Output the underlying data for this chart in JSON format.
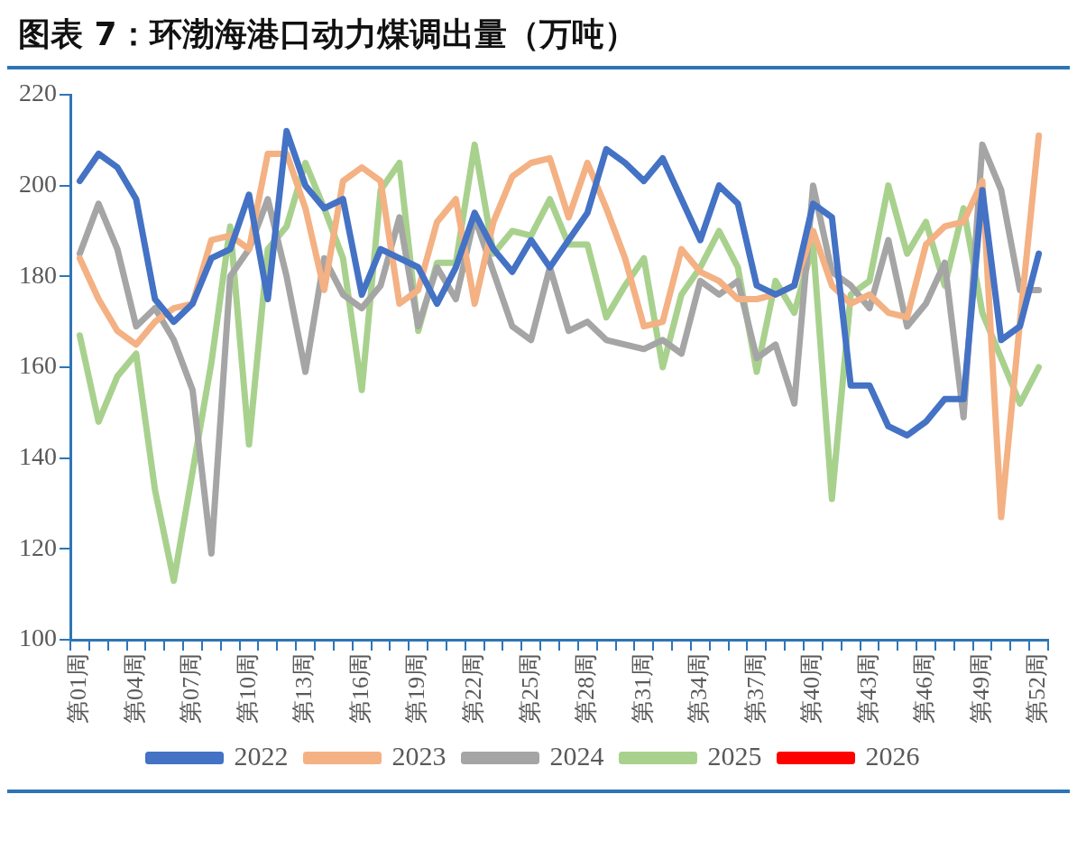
{
  "chart_data": {
    "type": "line",
    "title": "图表 7：环渤海港口动力煤调出量（万吨）",
    "categories": [
      "第01周",
      null,
      null,
      "第04周",
      null,
      null,
      "第07周",
      null,
      null,
      "第10周",
      null,
      null,
      "第13周",
      null,
      null,
      "第16周",
      null,
      null,
      "第19周",
      null,
      null,
      "第22周",
      null,
      null,
      "第25周",
      null,
      null,
      "第28周",
      null,
      null,
      "第31周",
      null,
      null,
      "第34周",
      null,
      null,
      "第37周",
      null,
      null,
      "第40周",
      null,
      null,
      "第43周",
      null,
      null,
      "第46周",
      null,
      null,
      "第49周",
      null,
      null,
      "第52周"
    ],
    "series": [
      {
        "name": "2022",
        "color": "#4472c4",
        "values": [
          201,
          207,
          204,
          197,
          175,
          170,
          174,
          184,
          186,
          198,
          175,
          212,
          200,
          195,
          197,
          176,
          186,
          184,
          182,
          174,
          182,
          194,
          186,
          181,
          188,
          182,
          188,
          194,
          208,
          205,
          201,
          206,
          197,
          188,
          200,
          196,
          178,
          176,
          178,
          196,
          193,
          156,
          156,
          147,
          145,
          148,
          153,
          153,
          199,
          166,
          169,
          185
        ]
      },
      {
        "name": "2023",
        "color": "#f4b183",
        "values": [
          184,
          175,
          168,
          165,
          170,
          173,
          174,
          188,
          189,
          186,
          207,
          207,
          195,
          177,
          201,
          204,
          201,
          174,
          177,
          192,
          197,
          174,
          192,
          202,
          205,
          206,
          193,
          205,
          195,
          184,
          169,
          170,
          186,
          181,
          179,
          175,
          175,
          176,
          178,
          190,
          178,
          174,
          176,
          172,
          171,
          187,
          191,
          192,
          201,
          127,
          170,
          211
        ]
      },
      {
        "name": "2024",
        "color": "#a5a5a5",
        "values": [
          185,
          196,
          186,
          169,
          173,
          166,
          155,
          119,
          180,
          186,
          197,
          180,
          159,
          184,
          176,
          173,
          178,
          193,
          169,
          182,
          175,
          193,
          181,
          169,
          166,
          182,
          168,
          170,
          166,
          165,
          164,
          166,
          163,
          179,
          176,
          179,
          162,
          165,
          152,
          200,
          181,
          178,
          173,
          188,
          169,
          174,
          183,
          149,
          209,
          199,
          177,
          177
        ]
      },
      {
        "name": "2025",
        "color": "#a9d18e",
        "values": [
          167,
          148,
          158,
          163,
          133,
          113,
          137,
          161,
          191,
          143,
          186,
          191,
          205,
          195,
          184,
          155,
          199,
          205,
          168,
          183,
          183,
          209,
          185,
          190,
          189,
          197,
          187,
          187,
          171,
          178,
          184,
          160,
          176,
          182,
          190,
          182,
          159,
          179,
          172,
          187,
          131,
          176,
          179,
          200,
          185,
          192,
          178,
          195,
          172,
          162,
          152,
          160
        ]
      },
      {
        "name": "2026",
        "color": "#ff0000",
        "values": [
          null,
          null,
          null,
          null,
          null,
          null,
          null,
          null,
          null,
          null,
          null,
          null,
          null,
          null,
          null,
          null,
          null,
          null,
          null,
          null,
          null,
          null,
          null,
          null,
          null,
          null,
          null,
          null,
          null,
          null,
          null,
          null,
          null,
          null,
          null,
          null,
          null,
          null,
          null,
          null,
          null,
          null,
          null,
          null,
          null,
          null,
          null,
          null,
          null,
          null,
          null,
          null
        ]
      }
    ],
    "ylim": [
      100,
      220
    ],
    "yticks": [
      100,
      120,
      140,
      160,
      180,
      200,
      220
    ],
    "grid": false,
    "legend": "bottom",
    "marker": "none",
    "line_style": "solid"
  }
}
